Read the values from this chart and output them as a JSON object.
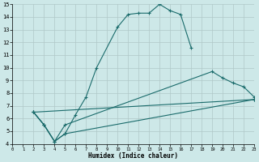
{
  "xlabel": "Humidex (Indice chaleur)",
  "xlim": [
    0,
    23
  ],
  "ylim": [
    4,
    15
  ],
  "xticks": [
    0,
    1,
    2,
    3,
    4,
    5,
    6,
    7,
    8,
    9,
    10,
    11,
    12,
    13,
    14,
    15,
    16,
    17,
    18,
    19,
    20,
    21,
    22,
    23
  ],
  "yticks": [
    4,
    5,
    6,
    7,
    8,
    9,
    10,
    11,
    12,
    13,
    14,
    15
  ],
  "bg_color": "#cde8e8",
  "grid_color": "#b0c8c8",
  "line_color": "#1a6b6b",
  "curve1_x": [
    2,
    3,
    4,
    5,
    6,
    7,
    8,
    10,
    11,
    12,
    13,
    14,
    15,
    16,
    17
  ],
  "curve1_y": [
    6.5,
    5.5,
    4.2,
    4.8,
    6.3,
    7.7,
    10.0,
    13.2,
    14.2,
    14.3,
    14.3,
    15.0,
    14.5,
    14.2,
    11.6
  ],
  "curve2_x": [
    2,
    3,
    4,
    5,
    19,
    20,
    21,
    22,
    23
  ],
  "curve2_y": [
    6.5,
    5.5,
    4.2,
    5.5,
    9.7,
    9.2,
    8.8,
    8.5,
    7.7
  ],
  "curve3_x": [
    2,
    23
  ],
  "curve3_y": [
    6.5,
    7.5
  ],
  "curve4_x": [
    2,
    3,
    4,
    5,
    23
  ],
  "curve4_y": [
    6.5,
    5.5,
    4.2,
    4.8,
    7.5
  ]
}
